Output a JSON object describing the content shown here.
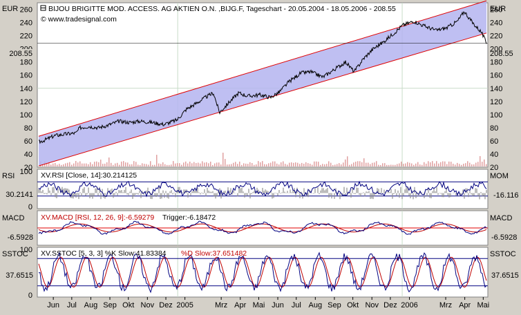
{
  "colors": {
    "background": "#d4d0c8",
    "plot": "#ffffff",
    "channel_fill": "#b4b4f0",
    "channel_line": "#e00000",
    "price_line": "#000000",
    "indicator_main": "#000080",
    "indicator_signal": "#c00000",
    "grid": "#c8dcc8",
    "volume": "#e0a0a0"
  },
  "chart_data": [
    {
      "type": "line",
      "panel": "price",
      "title": "BIJOU BRIGITTE MOD. ACCESS. AG AKTIEN O.N. ,BIJG.F, Tageschart - 20.05.2004 - 18.05.2006 - 208.55",
      "source": "© www.tradesignal.com",
      "unit_left": "EUR",
      "unit_right": "EUR",
      "last_value": "208.55",
      "ylim": [
        20,
        270
      ],
      "yticks": [
        "20",
        "40",
        "60",
        "80",
        "100",
        "120",
        "140",
        "160",
        "180",
        "200",
        "220",
        "240",
        "260"
      ],
      "x_labels": [
        "Jun",
        "Jul",
        "Aug",
        "Sep",
        "Okt",
        "Nov",
        "Dez",
        "2005",
        "Mrz",
        "Apr",
        "Mai",
        "Jun",
        "Jul",
        "Aug",
        "Sep",
        "Okt",
        "Nov",
        "Dez",
        "2006",
        "Mrz",
        "Apr",
        "Mai"
      ],
      "x_months": [
        "2004-06",
        "2004-07",
        "2004-08",
        "2004-09",
        "2004-10",
        "2004-11",
        "2004-12",
        "2005-01",
        "2005-03",
        "2005-04",
        "2005-05",
        "2005-06",
        "2005-07",
        "2005-08",
        "2005-09",
        "2005-10",
        "2005-11",
        "2005-12",
        "2006-01",
        "2006-03",
        "2006-04",
        "2006-05"
      ],
      "channel": {
        "upper": [
          [
            "2004-05-20",
            67
          ],
          [
            "2006-05-18",
            273
          ]
        ],
        "lower": [
          [
            "2004-05-20",
            22
          ],
          [
            "2006-05-18",
            224
          ]
        ]
      },
      "series": [
        {
          "values": [
            [
              "2004-05-20",
              58
            ],
            [
              "2004-06-01",
              62
            ],
            [
              "2004-06-15",
              68
            ],
            [
              "2004-07-01",
              70
            ],
            [
              "2004-07-20",
              72
            ],
            [
              "2004-07-26",
              80
            ],
            [
              "2004-08-10",
              82
            ],
            [
              "2004-08-25",
              80
            ],
            [
              "2004-09-10",
              84
            ],
            [
              "2004-09-28",
              90
            ],
            [
              "2004-10-15",
              88
            ],
            [
              "2004-11-01",
              90
            ],
            [
              "2004-11-20",
              88
            ],
            [
              "2004-12-10",
              85
            ],
            [
              "2004-12-31",
              92
            ],
            [
              "2005-01-15",
              108
            ],
            [
              "2005-01-31",
              117
            ],
            [
              "2005-02-15",
              126
            ],
            [
              "2005-02-28",
              133
            ],
            [
              "2005-03-10",
              103
            ],
            [
              "2005-03-25",
              118
            ],
            [
              "2005-04-10",
              133
            ],
            [
              "2005-04-25",
              128
            ],
            [
              "2005-05-15",
              130
            ],
            [
              "2005-06-01",
              126
            ],
            [
              "2005-06-15",
              134
            ],
            [
              "2005-07-01",
              150
            ],
            [
              "2005-07-20",
              163
            ],
            [
              "2005-08-05",
              165
            ],
            [
              "2005-08-25",
              157
            ],
            [
              "2005-09-15",
              170
            ],
            [
              "2005-10-01",
              180
            ],
            [
              "2005-10-15",
              165
            ],
            [
              "2005-10-30",
              185
            ],
            [
              "2005-11-15",
              200
            ],
            [
              "2005-12-01",
              210
            ],
            [
              "2005-12-20",
              225
            ],
            [
              "2006-01-02",
              236
            ],
            [
              "2006-01-20",
              242
            ],
            [
              "2006-02-05",
              235
            ],
            [
              "2006-02-25",
              228
            ],
            [
              "2006-03-15",
              232
            ],
            [
              "2006-04-01",
              242
            ],
            [
              "2006-04-12",
              257
            ],
            [
              "2006-04-25",
              240
            ],
            [
              "2006-05-10",
              225
            ],
            [
              "2006-05-18",
              208.55
            ]
          ]
        }
      ]
    },
    {
      "type": "line",
      "panel": "rsi",
      "label_left": "RSI",
      "label_right": "MOM",
      "legend": "XV.RSI [Close, 14]:30.214125",
      "value_left": "30.2141",
      "value_right": "-16.116",
      "yticks": [
        "100",
        "0"
      ],
      "ylim": [
        0,
        100
      ],
      "reference_lines": [
        30,
        70
      ]
    },
    {
      "type": "line",
      "panel": "macd",
      "label_left": "MACD",
      "label_right": "MACD",
      "legend_main": "XV.MACD [RSI, 12, 26, 9]:-6.59279",
      "legend_trigger": "Trigger:-6.18472",
      "value_left": "-6.5928",
      "value_right": "-6.5928",
      "ylim": [
        -30,
        30
      ],
      "reference_lines": [
        0
      ]
    },
    {
      "type": "line",
      "panel": "sstoc",
      "label_left": "SSTOC",
      "label_right": "SSTOC",
      "legend_main": "XV.SSTOC [5, 3, 3] %K Slow:41.83384",
      "legend_signal": "%D Slow:37.651482",
      "value_left": "37.6515",
      "value_right": "37.6515",
      "yticks": [
        "100",
        "0"
      ],
      "ylim": [
        0,
        100
      ],
      "reference_lines": [
        20,
        80
      ]
    }
  ]
}
